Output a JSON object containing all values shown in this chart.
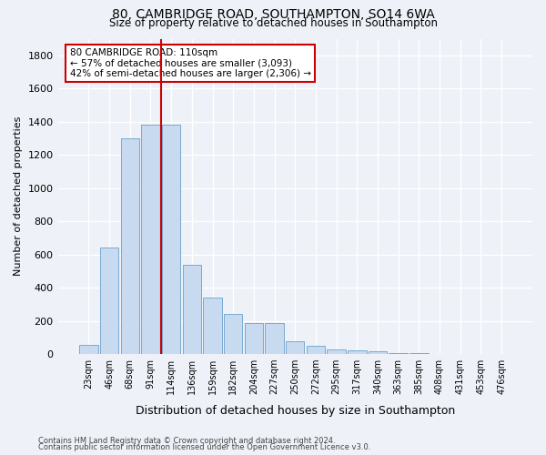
{
  "title1": "80, CAMBRIDGE ROAD, SOUTHAMPTON, SO14 6WA",
  "title2": "Size of property relative to detached houses in Southampton",
  "xlabel": "Distribution of detached houses by size in Southampton",
  "ylabel": "Number of detached properties",
  "footnote1": "Contains HM Land Registry data © Crown copyright and database right 2024.",
  "footnote2": "Contains public sector information licensed under the Open Government Licence v3.0.",
  "bar_labels": [
    "23sqm",
    "46sqm",
    "68sqm",
    "91sqm",
    "114sqm",
    "136sqm",
    "159sqm",
    "182sqm",
    "204sqm",
    "227sqm",
    "250sqm",
    "272sqm",
    "295sqm",
    "317sqm",
    "340sqm",
    "363sqm",
    "385sqm",
    "408sqm",
    "431sqm",
    "453sqm",
    "476sqm"
  ],
  "bar_values": [
    55,
    640,
    1300,
    1380,
    1380,
    540,
    340,
    240,
    185,
    185,
    75,
    50,
    30,
    20,
    15,
    8,
    5,
    0,
    0,
    0,
    0
  ],
  "bar_color": "#c8daf0",
  "bar_edge_color": "#6aa0cc",
  "vline_index": 4,
  "annotation_label": "80 CAMBRIDGE ROAD: 110sqm",
  "annotation_line1": "← 57% of detached houses are smaller (3,093)",
  "annotation_line2": "42% of semi-detached houses are larger (2,306) →",
  "annotation_box_color": "#ffffff",
  "annotation_box_edge": "#cc0000",
  "vline_color": "#cc0000",
  "background_color": "#eef2f8",
  "ylim": [
    0,
    1900
  ],
  "yticks": [
    0,
    200,
    400,
    600,
    800,
    1000,
    1200,
    1400,
    1600,
    1800
  ]
}
